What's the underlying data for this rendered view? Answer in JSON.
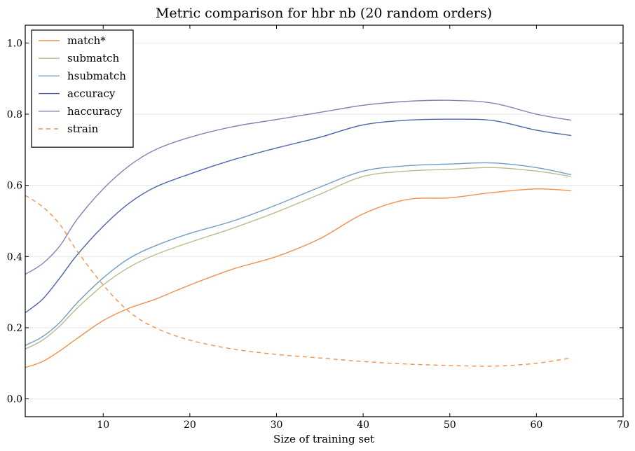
{
  "chart_data": {
    "type": "line",
    "title": "Metric comparison for hbr nb (20 random orders)",
    "xlabel": "Size of training set",
    "ylabel": "",
    "xlim": [
      1,
      70
    ],
    "ylim": [
      -0.05,
      1.05
    ],
    "xticks": [
      10,
      20,
      30,
      40,
      50,
      60,
      70
    ],
    "xtick_labels": [
      "10",
      "20",
      "30",
      "40",
      "50",
      "60",
      "70"
    ],
    "yticks": [
      0.0,
      0.2,
      0.4,
      0.6,
      0.8,
      1.0
    ],
    "ytick_labels": [
      "0.0",
      "0.2",
      "0.4",
      "0.6",
      "0.8",
      "1.0"
    ],
    "grid": "horizontal",
    "legend_position": "top-left",
    "x": [
      1,
      3,
      5,
      7,
      10,
      13,
      16,
      20,
      25,
      30,
      35,
      40,
      45,
      50,
      55,
      60,
      64
    ],
    "series": [
      {
        "name": "match*",
        "color": "#f0904a",
        "dash": false,
        "values": [
          0.088,
          0.105,
          0.135,
          0.17,
          0.22,
          0.255,
          0.28,
          0.32,
          0.365,
          0.4,
          0.45,
          0.52,
          0.56,
          0.565,
          0.58,
          0.59,
          0.585
        ]
      },
      {
        "name": "submatch",
        "color": "#b5bd8c",
        "dash": false,
        "values": [
          0.14,
          0.165,
          0.205,
          0.255,
          0.32,
          0.37,
          0.405,
          0.44,
          0.48,
          0.525,
          0.575,
          0.625,
          0.64,
          0.645,
          0.65,
          0.64,
          0.625
        ]
      },
      {
        "name": "hsubmatch",
        "color": "#6d9ec3",
        "dash": false,
        "values": [
          0.15,
          0.175,
          0.215,
          0.27,
          0.34,
          0.395,
          0.43,
          0.465,
          0.5,
          0.545,
          0.595,
          0.64,
          0.655,
          0.66,
          0.663,
          0.65,
          0.63
        ]
      },
      {
        "name": "accuracy",
        "color": "#4a66a8",
        "dash": false,
        "values": [
          0.242,
          0.28,
          0.34,
          0.405,
          0.485,
          0.55,
          0.595,
          0.632,
          0.672,
          0.705,
          0.735,
          0.77,
          0.783,
          0.786,
          0.782,
          0.755,
          0.74
        ]
      },
      {
        "name": "haccuracy",
        "color": "#8b7fb5",
        "dash": false,
        "values": [
          0.35,
          0.38,
          0.43,
          0.505,
          0.59,
          0.655,
          0.7,
          0.735,
          0.765,
          0.785,
          0.805,
          0.825,
          0.836,
          0.839,
          0.831,
          0.8,
          0.783
        ]
      },
      {
        "name": "strain",
        "color": "#f0904a",
        "dash": true,
        "values": [
          0.572,
          0.54,
          0.49,
          0.415,
          0.32,
          0.245,
          0.2,
          0.165,
          0.14,
          0.125,
          0.115,
          0.105,
          0.098,
          0.094,
          0.092,
          0.1,
          0.115
        ]
      }
    ]
  }
}
